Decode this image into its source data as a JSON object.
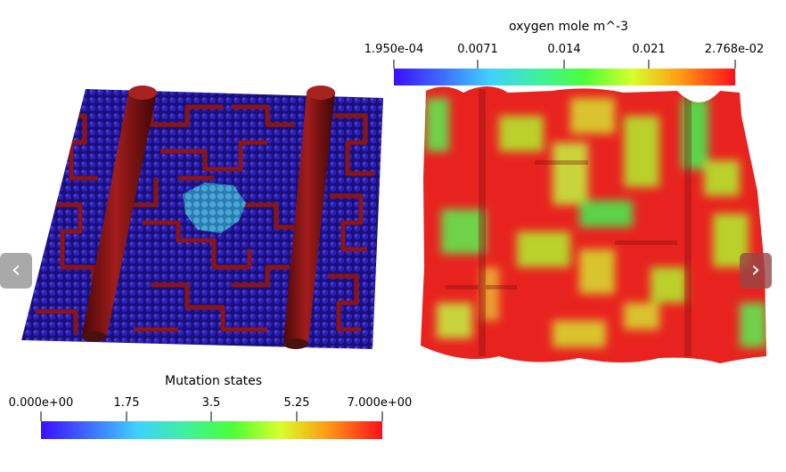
{
  "oxygen_colorbar": {
    "title": "oxygen mole m^-3",
    "ticks": [
      "1.950e-04",
      "0.0071",
      "0.014",
      "0.021",
      "2.768e-02"
    ]
  },
  "mutation_colorbar": {
    "title": "Mutation states",
    "ticks": [
      "0.000e+00",
      "1.75",
      "3.5",
      "5.25",
      "7.000e+00"
    ]
  },
  "nav": {
    "prev_glyph": "‹",
    "next_glyph": "›"
  },
  "colors": {
    "cell_normal": "#2a1aa8",
    "vessel": "#8b1414",
    "mutated": "#4aa6d6",
    "oxygen_high": "#e8231f",
    "oxygen_mid": "#b9d12c",
    "oxygen_low": "#5bd24a"
  }
}
